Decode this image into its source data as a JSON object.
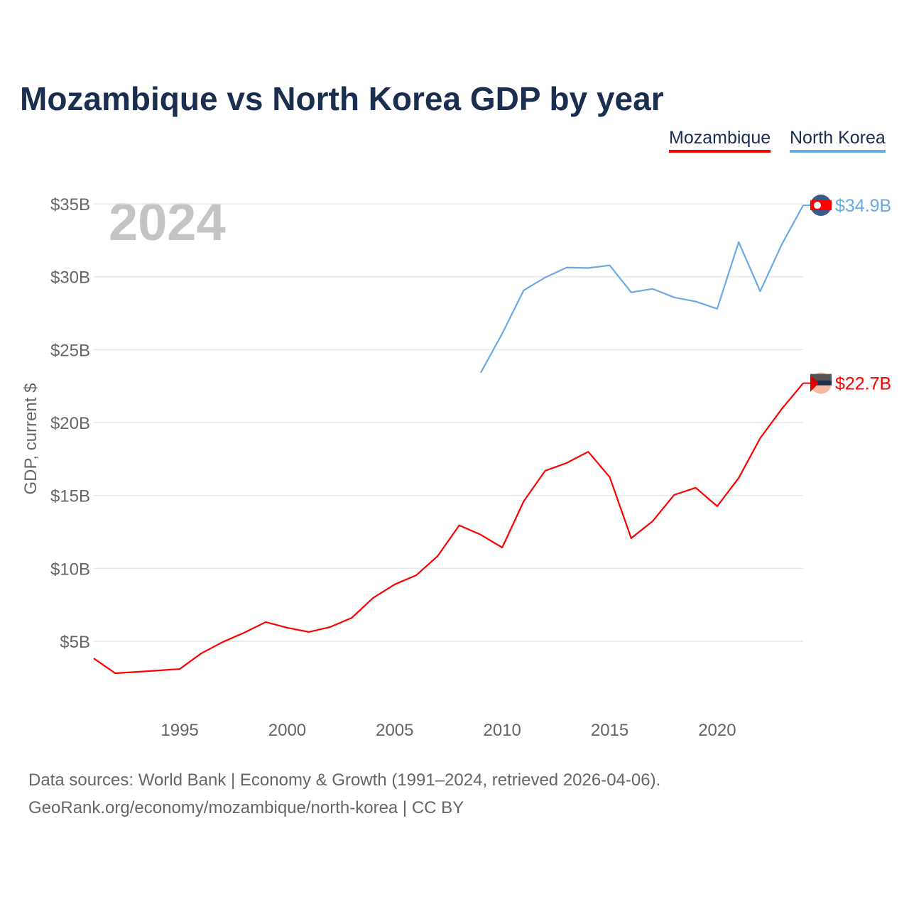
{
  "title": "Mozambique vs North Korea GDP by year",
  "footer": {
    "line1": "Data sources: World Bank | Economy & Growth (1991–2024, retrieved 2026-04-06).",
    "line2": "GeoRank.org/economy/mozambique/north-korea | CC BY"
  },
  "chart_data": {
    "type": "line",
    "title": "Mozambique vs North Korea GDP by year",
    "ylabel": "GDP, current $",
    "xlabel": "",
    "year_watermark": "2024",
    "xlim": [
      1991,
      2024
    ],
    "ylim": [
      0,
      35
    ],
    "xticks": [
      1995,
      2000,
      2005,
      2010,
      2015,
      2020
    ],
    "xtick_labels": [
      "1995",
      "2000",
      "2005",
      "2010",
      "2015",
      "2020"
    ],
    "yticks": [
      5,
      10,
      15,
      20,
      25,
      30,
      35
    ],
    "ytick_labels": [
      "$5B",
      "$10B",
      "$15B",
      "$20B",
      "$25B",
      "$30B",
      "$35B"
    ],
    "grid": true,
    "legend_position": "top-right",
    "series": [
      {
        "name": "Mozambique",
        "color": "#ff0000",
        "end_label": "$22.7B",
        "x": [
          1991,
          1992,
          1993,
          1994,
          1995,
          1996,
          1997,
          1998,
          1999,
          2000,
          2001,
          2002,
          2003,
          2004,
          2005,
          2006,
          2007,
          2008,
          2009,
          2010,
          2011,
          2012,
          2013,
          2014,
          2015,
          2016,
          2017,
          2018,
          2019,
          2020,
          2021,
          2022,
          2023,
          2024
        ],
        "values": [
          3.83,
          2.81,
          2.9,
          3.0,
          3.1,
          4.17,
          4.95,
          5.59,
          6.32,
          5.93,
          5.64,
          5.98,
          6.61,
          7.98,
          8.9,
          9.53,
          10.85,
          12.95,
          12.31,
          11.43,
          14.6,
          16.7,
          17.23,
          18.0,
          16.26,
          12.07,
          13.24,
          15.04,
          15.53,
          14.26,
          16.2,
          18.93,
          20.93,
          22.7
        ]
      },
      {
        "name": "North Korea",
        "color": "#6aaae4",
        "end_label": "$34.9B",
        "x": [
          2009,
          2010,
          2011,
          2012,
          2013,
          2014,
          2015,
          2016,
          2017,
          2018,
          2019,
          2020,
          2021,
          2022,
          2023,
          2024
        ],
        "values": [
          23.42,
          26.1,
          29.07,
          29.95,
          30.63,
          30.6,
          30.78,
          28.93,
          29.17,
          28.58,
          28.3,
          27.8,
          32.38,
          29.0,
          32.2,
          34.9
        ]
      }
    ]
  }
}
